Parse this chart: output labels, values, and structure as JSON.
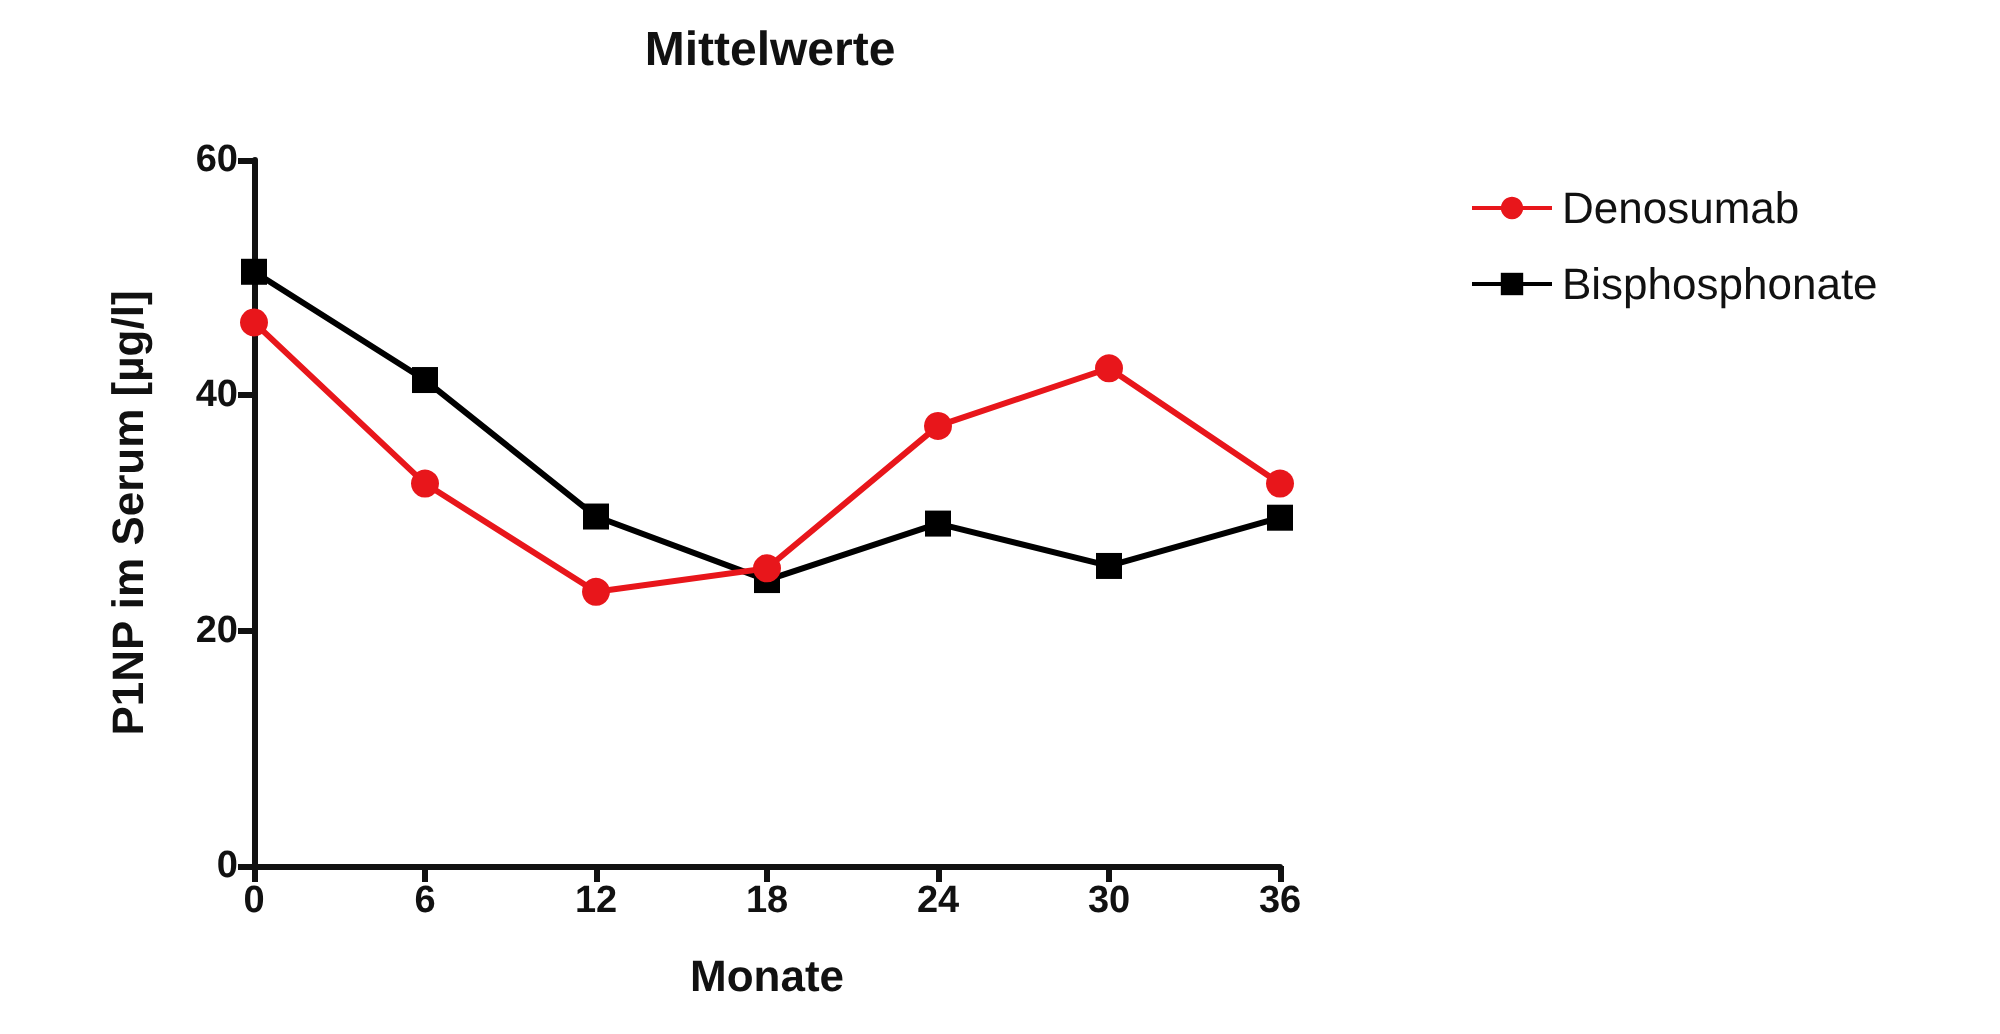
{
  "chart_data": {
    "type": "line",
    "title": "Mittelwerte",
    "xlabel": "Monate",
    "ylabel": "P1NP im Serum [µg/l]",
    "x": [
      0,
      6,
      12,
      18,
      24,
      30,
      36
    ],
    "series": [
      {
        "name": "Denosumab",
        "color": "#e8161b",
        "marker": "circle",
        "values": [
          46.2,
          32.5,
          23.3,
          25.3,
          37.4,
          42.3,
          32.5
        ]
      },
      {
        "name": "Bisphosphonate",
        "color": "#000000",
        "marker": "square",
        "values": [
          50.5,
          41.3,
          29.7,
          24.3,
          29.1,
          25.5,
          29.6
        ]
      }
    ],
    "xlim": [
      0,
      36
    ],
    "xticks": [
      0,
      6,
      12,
      18,
      24,
      30,
      36
    ],
    "ylim": [
      0,
      60
    ],
    "yticks": [
      0,
      20,
      40,
      60
    ],
    "grid": false,
    "legend": "right",
    "line_style": "solid"
  }
}
